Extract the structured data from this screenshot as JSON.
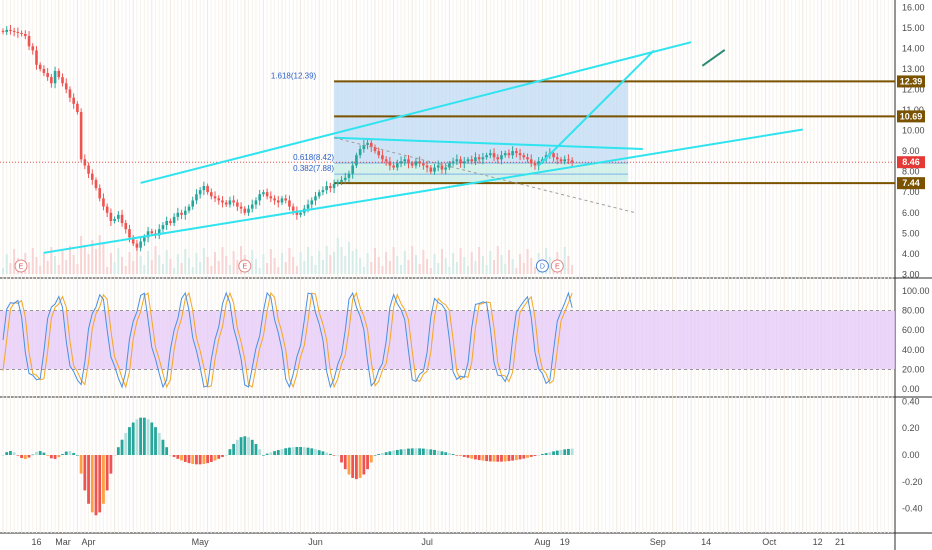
{
  "colors": {
    "up": "#26a69a",
    "down": "#ef5350",
    "trend": "#2fe3ef",
    "level": "#7a5200",
    "price": "#e53935",
    "stoch_k": "#4a90e2",
    "stoch_d": "#f5a623",
    "stoch_band": "#e6c8f7",
    "macd_up_strong": "#26a69a",
    "macd_up_weak": "#b2dfdb",
    "macd_down_strong": "#ef5350",
    "macd_down_weak": "#ff9f43",
    "fib_fill_blue": "#bcd9f5",
    "fib_fill_green": "#c7ece4"
  },
  "chart_data": [
    {
      "type": "candlestick",
      "name": "price",
      "y_ticks": [
        "16.00",
        "15.00",
        "14.00",
        "13.00",
        "12.00",
        "11.00",
        "10.00",
        "9.00",
        "8.00",
        "7.00",
        "6.00",
        "5.00",
        "4.00",
        "3.00"
      ],
      "ylim": [
        3,
        16.2
      ],
      "x_labels": [
        "Mar",
        "16",
        "Apr",
        "May",
        "Jun",
        "Jul",
        "Aug",
        "19",
        "Sep",
        "14",
        "Oct",
        "12",
        "21"
      ],
      "x_label_day": [
        0,
        9,
        23,
        53,
        84,
        114,
        145,
        151,
        176,
        189,
        206,
        219,
        225
      ],
      "last_price": 8.46,
      "level_tags": [
        12.39,
        10.69,
        8.46,
        7.44
      ],
      "levels": [
        12.39,
        10.69,
        7.44
      ],
      "fib_labels": [
        "1.618(12.39)",
        "0.618(8.42)",
        "0.382(7.88)"
      ],
      "fib_values": [
        12.39,
        8.42,
        7.88
      ],
      "events": [
        "E",
        "E",
        "D",
        "E"
      ],
      "event_day": [
        0,
        65,
        145,
        149
      ],
      "closes": [
        14.8,
        14.9,
        14.85,
        14.8,
        14.75,
        14.7,
        14.6,
        14.1,
        13.9,
        13.2,
        13.0,
        12.8,
        12.6,
        12.3,
        12.9,
        12.6,
        12.3,
        12.0,
        11.6,
        11.3,
        10.9,
        8.6,
        8.3,
        7.9,
        7.6,
        7.2,
        6.7,
        6.3,
        6.0,
        5.6,
        5.7,
        5.9,
        5.5,
        5.2,
        4.8,
        4.5,
        4.3,
        4.6,
        4.8,
        5.1,
        5.0,
        4.9,
        5.2,
        5.4,
        5.6,
        5.5,
        5.8,
        6.0,
        5.9,
        6.1,
        6.3,
        6.6,
        6.9,
        7.1,
        7.3,
        7.0,
        6.8,
        6.7,
        6.6,
        6.5,
        6.4,
        6.6,
        6.5,
        6.3,
        6.2,
        6.0,
        6.2,
        6.4,
        6.6,
        6.9,
        7.0,
        6.8,
        6.7,
        6.6,
        6.5,
        6.7,
        6.6,
        6.3,
        6.1,
        5.9,
        6.0,
        6.2,
        6.4,
        6.6,
        6.8,
        7.0,
        7.1,
        7.3,
        7.2,
        7.4,
        7.5,
        7.6,
        7.7,
        7.9,
        8.3,
        8.8,
        9.1,
        9.3,
        9.4,
        9.2,
        9.0,
        8.8,
        8.6,
        8.5,
        8.3,
        8.2,
        8.4,
        8.5,
        8.6,
        8.4,
        8.3,
        8.5,
        8.4,
        8.3,
        8.2,
        8.0,
        8.2,
        8.3,
        8.1,
        8.2,
        8.4,
        8.5,
        8.6,
        8.4,
        8.5,
        8.6,
        8.5,
        8.7,
        8.6,
        8.7,
        8.8,
        8.9,
        8.7,
        8.6,
        8.8,
        8.9,
        8.8,
        9.0,
        8.9,
        8.8,
        8.7,
        8.6,
        8.4,
        8.3,
        8.5,
        8.6,
        8.8,
        8.9,
        8.7,
        8.6,
        8.5,
        8.6,
        8.55,
        8.46
      ],
      "trend_lines": [
        {
          "from": [
            11,
            4.05
          ],
          "to": [
            215,
            10.05
          ]
        },
        {
          "from": [
            37,
            7.45
          ],
          "to": [
            185,
            14.3
          ]
        },
        {
          "from": [
            89,
            9.65
          ],
          "to": [
            172,
            9.1
          ]
        },
        {
          "from": [
            144,
            8.3
          ],
          "to": [
            175,
            13.9
          ]
        }
      ],
      "dashed_line": {
        "from": [
          89,
          9.65
        ],
        "to": [
          170,
          6.0
        ]
      }
    },
    {
      "type": "line",
      "name": "stochastic",
      "y_ticks": [
        "100.00",
        "80.00",
        "60.00",
        "40.00",
        "20.00",
        "0.00"
      ],
      "ylim": [
        -5,
        103
      ],
      "band": [
        20,
        80
      ]
    },
    {
      "type": "bar",
      "name": "macd-histogram",
      "y_ticks": [
        "0.40",
        "0.20",
        "0.00",
        "-0.20",
        "-0.40"
      ],
      "ylim": [
        -0.5,
        0.45
      ]
    }
  ]
}
